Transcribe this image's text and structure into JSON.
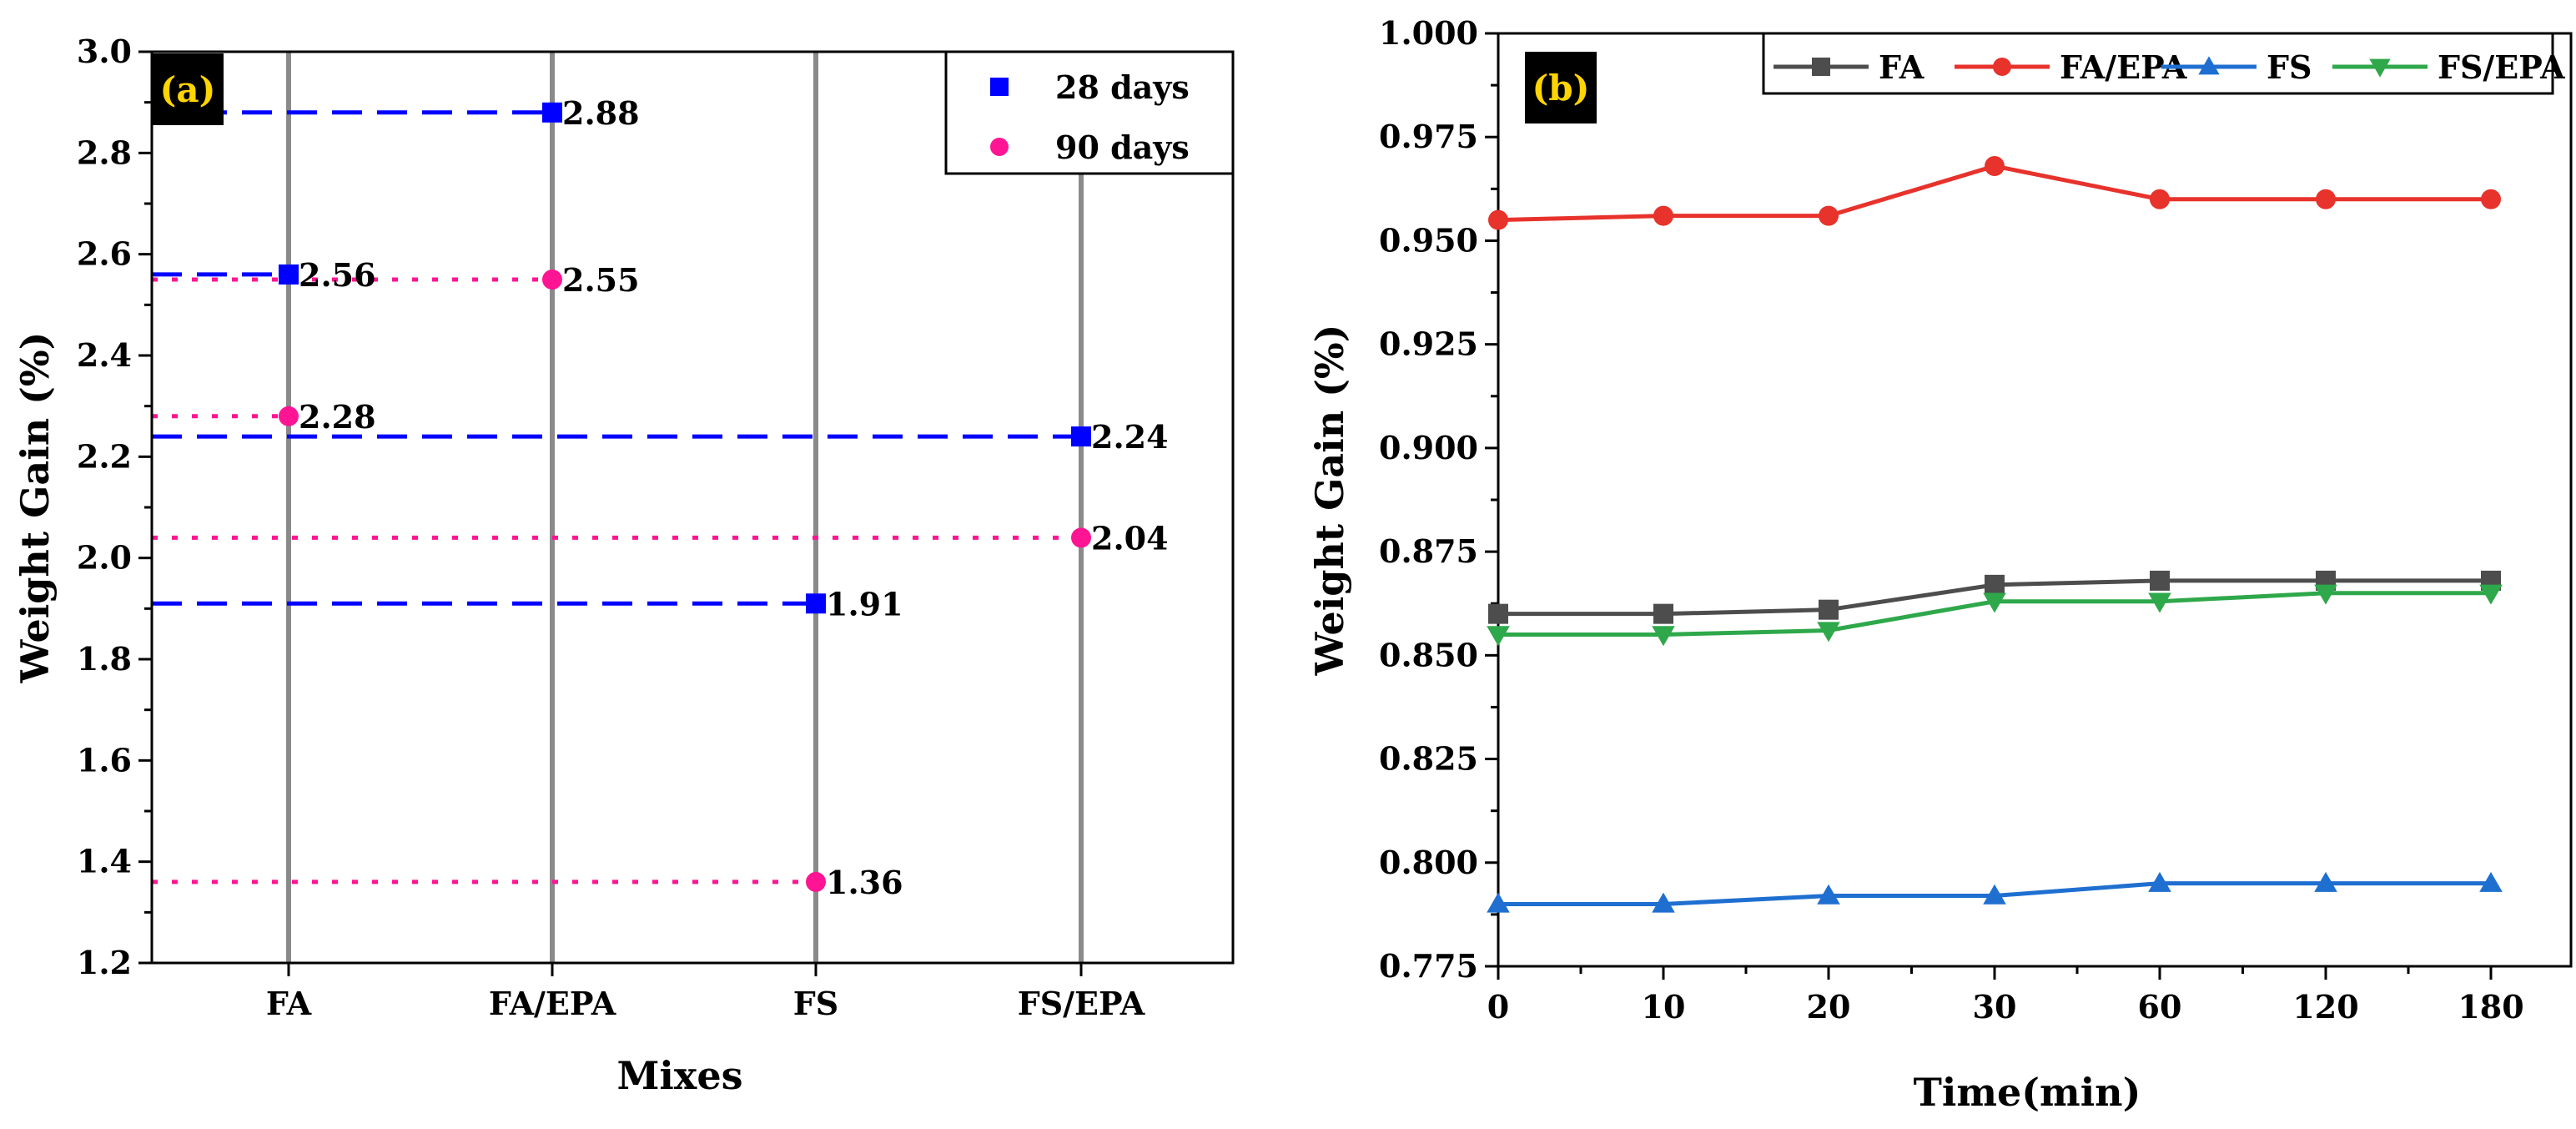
{
  "chart_data": [
    {
      "panel": "(a)",
      "type": "scatter",
      "xlabel": "Mixes",
      "ylabel": "Weight Gain (%)",
      "categories": [
        "FA",
        "FA/EPA",
        "FS",
        "FS/EPA"
      ],
      "ylim": [
        1.2,
        3.0
      ],
      "yticks": [
        "1.2",
        "1.4",
        "1.6",
        "1.8",
        "2.0",
        "2.2",
        "2.4",
        "2.6",
        "2.8",
        "3.0"
      ],
      "legend_position": "top-right",
      "grid": false,
      "series": [
        {
          "name": "28 days",
          "marker": "square",
          "color": "#0000ff",
          "values": [
            2.56,
            2.88,
            1.91,
            2.24
          ],
          "labels": [
            "2.56",
            "2.88",
            "1.91",
            "2.24"
          ]
        },
        {
          "name": "90 days",
          "marker": "circle",
          "color": "#ff1493",
          "values": [
            2.28,
            2.55,
            1.36,
            2.04
          ],
          "labels": [
            "2.28",
            "2.55",
            "1.36",
            "2.04"
          ]
        }
      ]
    },
    {
      "panel": "(b)",
      "type": "line",
      "xlabel": "Time(min)",
      "ylabel": "Weight Gain (%)",
      "x": [
        "0",
        "10",
        "20",
        "30",
        "60",
        "120",
        "180"
      ],
      "ylim": [
        0.775,
        1.0
      ],
      "yticks": [
        "0.775",
        "0.800",
        "0.825",
        "0.850",
        "0.875",
        "0.900",
        "0.925",
        "0.950",
        "0.975",
        "1.000"
      ],
      "legend_position": "top",
      "grid": false,
      "series": [
        {
          "name": "FA",
          "marker": "square",
          "color": "#4d4d4d",
          "values": [
            0.86,
            0.86,
            0.861,
            0.867,
            0.868,
            0.868,
            0.868
          ]
        },
        {
          "name": "FA/EPA",
          "marker": "circle",
          "color": "#e8322c",
          "values": [
            0.955,
            0.956,
            0.956,
            0.968,
            0.96,
            0.96,
            0.96
          ]
        },
        {
          "name": "FS",
          "marker": "triangle-up",
          "color": "#1f6fd1",
          "values": [
            0.79,
            0.79,
            0.792,
            0.792,
            0.795,
            0.795,
            0.795
          ]
        },
        {
          "name": "FS/EPA",
          "marker": "triangle-down",
          "color": "#2ea84a",
          "values": [
            0.855,
            0.855,
            0.856,
            0.863,
            0.863,
            0.865,
            0.865
          ]
        }
      ]
    }
  ]
}
